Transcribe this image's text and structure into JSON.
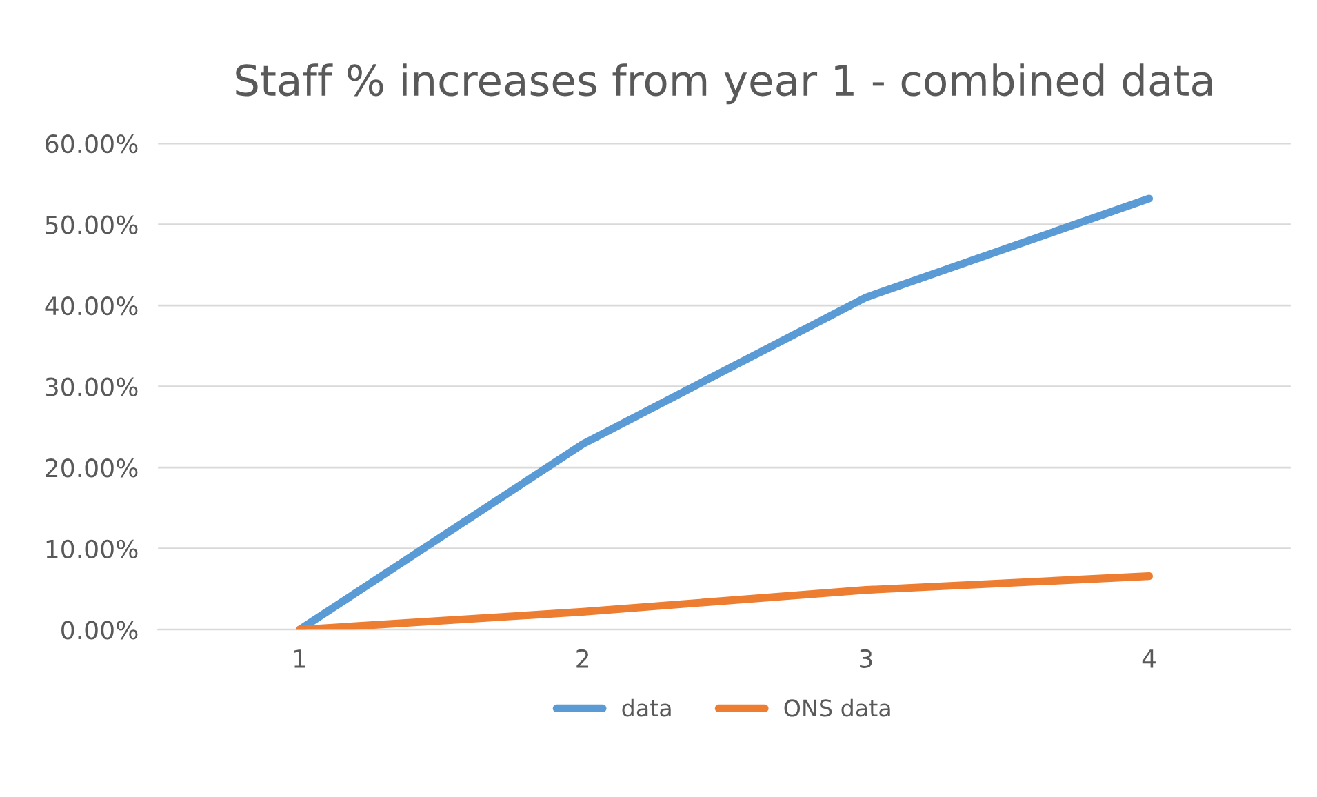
{
  "chart_data": {
    "type": "line",
    "title": "Staff % increases from year 1 - combined data",
    "categories": [
      "1",
      "2",
      "3",
      "4"
    ],
    "series": [
      {
        "name": "data",
        "color": "#5b9bd5",
        "values": [
          0,
          22.9,
          41.0,
          53.2
        ]
      },
      {
        "name": "ONS data",
        "color": "#ed7d31",
        "values": [
          0,
          2.2,
          4.9,
          6.6
        ]
      }
    ],
    "ylim": [
      0,
      60
    ],
    "yticks": [
      {
        "value": 0,
        "label": "0.00%"
      },
      {
        "value": 10,
        "label": "10.00%"
      },
      {
        "value": 20,
        "label": "20.00%"
      },
      {
        "value": 30,
        "label": "30.00%"
      },
      {
        "value": 40,
        "label": "40.00%"
      },
      {
        "value": 50,
        "label": "50.00%"
      },
      {
        "value": 60,
        "label": "60.00%"
      }
    ],
    "grid": "y",
    "legend": "bottom",
    "marker": "none",
    "line_style": "solid"
  }
}
